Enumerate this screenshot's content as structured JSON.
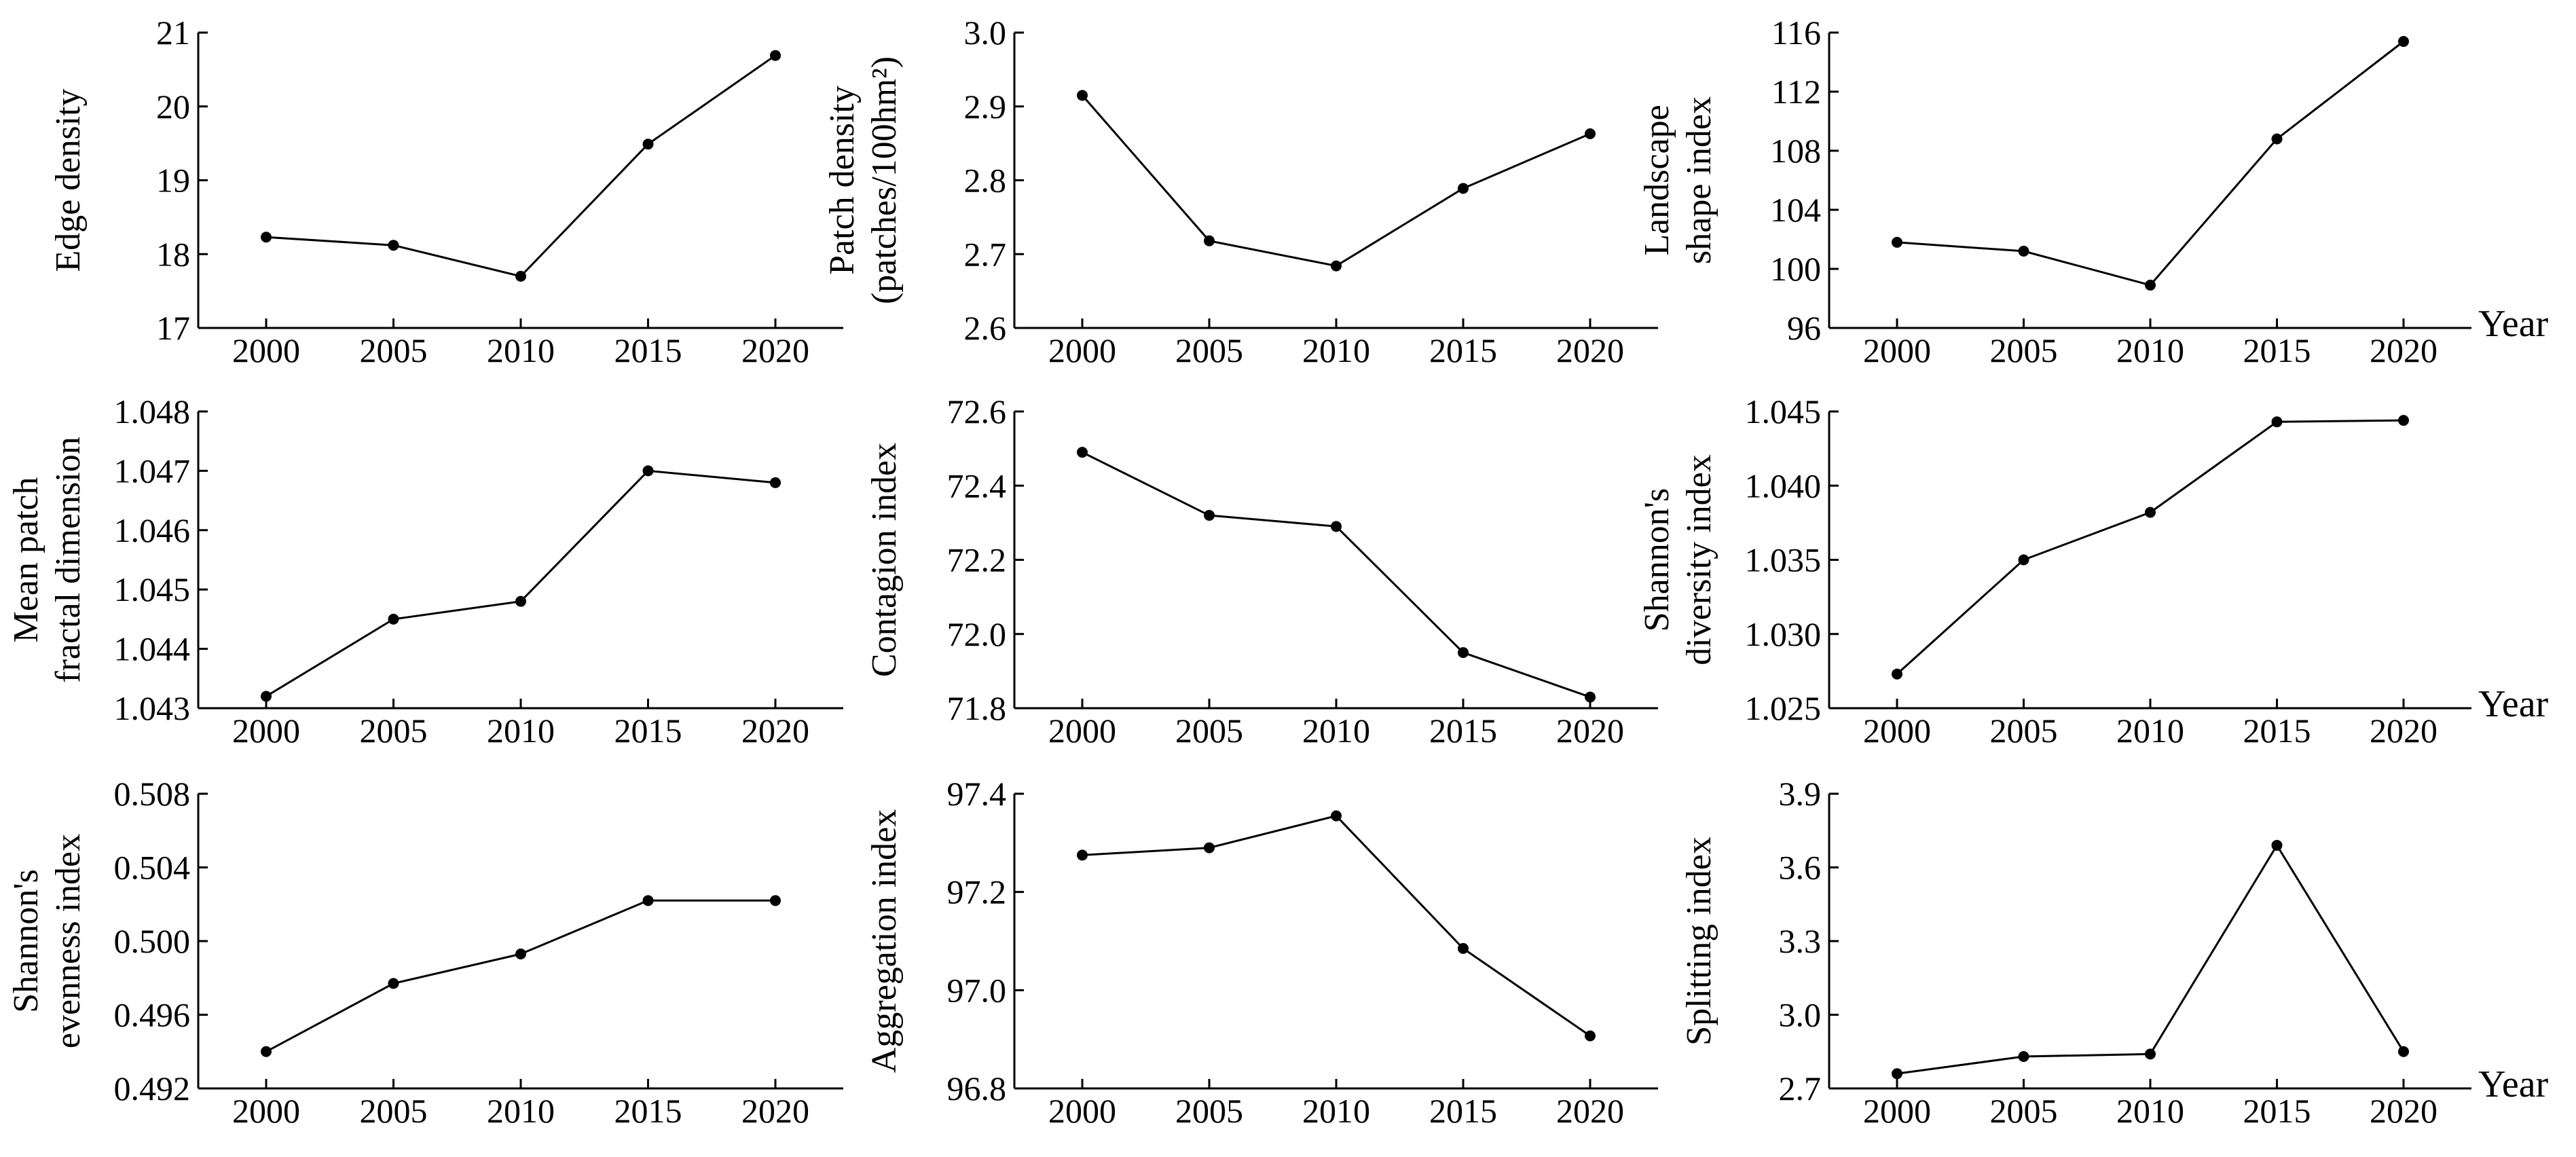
{
  "chart_data": [
    {
      "type": "line",
      "x": [
        2000,
        2005,
        2010,
        2015,
        2020
      ],
      "tick_labels": [
        "2000",
        "2005",
        "2010",
        "2015",
        "2020"
      ],
      "values": [
        18.23,
        18.12,
        17.7,
        19.49,
        20.69
      ],
      "ylabel_lines": [
        "Edge density"
      ],
      "ylim": [
        17,
        21
      ],
      "yticks": [
        "17",
        "18",
        "19",
        "20",
        "21"
      ],
      "xlabel": ""
    },
    {
      "type": "line",
      "x": [
        2000,
        2005,
        2010,
        2015,
        2020
      ],
      "tick_labels": [
        "2000",
        "2005",
        "2010",
        "2015",
        "2020"
      ],
      "values": [
        2.915,
        2.718,
        2.684,
        2.789,
        2.863
      ],
      "ylabel_lines": [
        "Patch density",
        "(patches/100hm²)"
      ],
      "ylim": [
        2.6,
        3.0
      ],
      "yticks": [
        "2.6",
        "2.7",
        "2.8",
        "2.9",
        "3.0"
      ],
      "xlabel": ""
    },
    {
      "type": "line",
      "x": [
        2000,
        2005,
        2010,
        2015,
        2020
      ],
      "tick_labels": [
        "2000",
        "2005",
        "2010",
        "2015",
        "2020"
      ],
      "values": [
        101.8,
        101.2,
        98.9,
        108.8,
        115.4
      ],
      "ylabel_lines": [
        "Landscape",
        "shape index"
      ],
      "ylim": [
        96,
        116
      ],
      "yticks": [
        "96",
        "100",
        "104",
        "108",
        "112",
        "116"
      ],
      "xlabel": "Year"
    },
    {
      "type": "line",
      "x": [
        2000,
        2005,
        2010,
        2015,
        2020
      ],
      "tick_labels": [
        "2000",
        "2005",
        "2010",
        "2015",
        "2020"
      ],
      "values": [
        1.0432,
        1.0445,
        1.0448,
        1.047,
        1.0468
      ],
      "ylabel_lines": [
        "Mean patch",
        "fractal dimension"
      ],
      "ylim": [
        1.043,
        1.048
      ],
      "yticks": [
        "1.043",
        "1.044",
        "1.045",
        "1.046",
        "1.047",
        "1.048"
      ],
      "xlabel": ""
    },
    {
      "type": "line",
      "x": [
        2000,
        2005,
        2010,
        2015,
        2020
      ],
      "tick_labels": [
        "2000",
        "2005",
        "2010",
        "2015",
        "2020"
      ],
      "values": [
        72.49,
        72.32,
        72.29,
        71.95,
        71.83
      ],
      "ylabel_lines": [
        "Contagion index"
      ],
      "ylim": [
        71.8,
        72.6
      ],
      "yticks": [
        "71.8",
        "72.0",
        "72.2",
        "72.4",
        "72.6"
      ],
      "xlabel": ""
    },
    {
      "type": "line",
      "x": [
        2000,
        2005,
        2010,
        2015,
        2020
      ],
      "tick_labels": [
        "2000",
        "2005",
        "2010",
        "2015",
        "2020"
      ],
      "values": [
        1.0273,
        1.035,
        1.0382,
        1.0443,
        1.0444
      ],
      "ylabel_lines": [
        "Shannon's",
        "diversity index"
      ],
      "ylim": [
        1.025,
        1.045
      ],
      "yticks": [
        "1.025",
        "1.030",
        "1.035",
        "1.040",
        "1.045"
      ],
      "xlabel": "Year"
    },
    {
      "type": "line",
      "x": [
        2000,
        2005,
        2010,
        2015,
        2020
      ],
      "tick_labels": [
        "2000",
        "2005",
        "2010",
        "2015",
        "2020"
      ],
      "values": [
        0.494,
        0.4977,
        0.4993,
        0.5022,
        0.5022
      ],
      "ylabel_lines": [
        "Shannon's",
        "evenness index"
      ],
      "ylim": [
        0.492,
        0.508
      ],
      "yticks": [
        "0.492",
        "0.496",
        "0.500",
        "0.504",
        "0.508"
      ],
      "xlabel": ""
    },
    {
      "type": "line",
      "x": [
        2000,
        2005,
        2010,
        2015,
        2020
      ],
      "tick_labels": [
        "2000",
        "2005",
        "2010",
        "2015",
        "2020"
      ],
      "values": [
        97.275,
        97.29,
        97.355,
        97.085,
        96.907
      ],
      "ylabel_lines": [
        "Aggregation index"
      ],
      "ylim": [
        96.8,
        97.4
      ],
      "yticks": [
        "96.8",
        "97.0",
        "97.2",
        "97.4"
      ],
      "xlabel": ""
    },
    {
      "type": "line",
      "x": [
        2000,
        2005,
        2010,
        2015,
        2020
      ],
      "tick_labels": [
        "2000",
        "2005",
        "2010",
        "2015",
        "2020"
      ],
      "values": [
        2.76,
        2.83,
        2.84,
        3.69,
        2.85
      ],
      "ylabel_lines": [
        "Splitting index"
      ],
      "ylim": [
        2.7,
        3.9
      ],
      "yticks": [
        "2.7",
        "3.0",
        "3.3",
        "3.6",
        "3.9"
      ],
      "xlabel": "Year"
    }
  ]
}
